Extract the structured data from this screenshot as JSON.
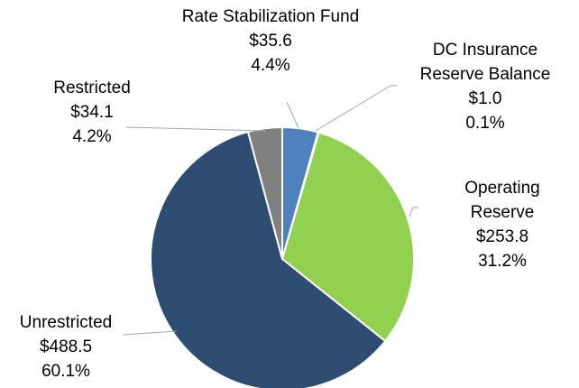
{
  "chart_data": {
    "type": "pie",
    "categories": [
      "Rate Stabilization Fund",
      "DC Insurance Reserve Balance",
      "Operating Reserve",
      "Unrestricted",
      "Restricted"
    ],
    "values": [
      35.6,
      1.0,
      253.8,
      488.5,
      34.1
    ],
    "value_labels": [
      "$35.6",
      "$1.0",
      "$253.8",
      "$488.5",
      "$34.1"
    ],
    "percentages": [
      4.4,
      0.1,
      31.2,
      60.1,
      4.2
    ],
    "percent_labels": [
      "4.4%",
      "0.1%",
      "31.2%",
      "60.1%",
      "4.2%"
    ],
    "colors": [
      "#4f81bd",
      "#c0504d",
      "#92d050",
      "#2e4b72",
      "#808080"
    ]
  }
}
